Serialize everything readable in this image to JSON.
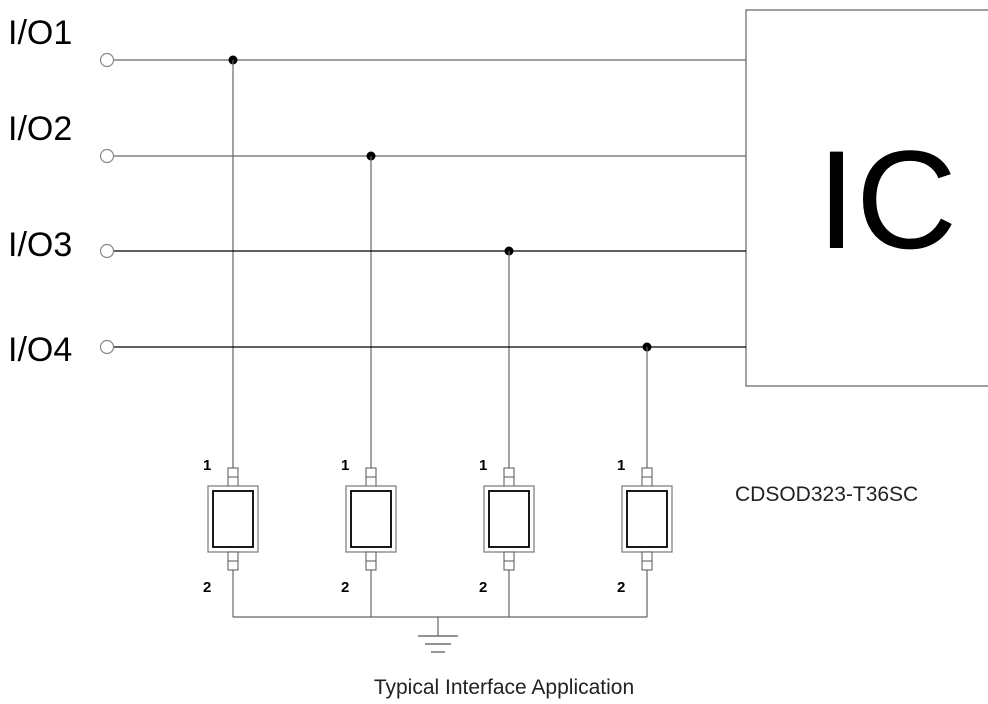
{
  "io_lines": [
    {
      "label": "I/O1"
    },
    {
      "label": "I/O2"
    },
    {
      "label": "I/O3"
    },
    {
      "label": "I/O4"
    }
  ],
  "ic": {
    "label": "IC"
  },
  "diodes": [
    {
      "pin_top": "1",
      "pin_bottom": "2"
    },
    {
      "pin_top": "1",
      "pin_bottom": "2"
    },
    {
      "pin_top": "1",
      "pin_bottom": "2"
    },
    {
      "pin_top": "1",
      "pin_bottom": "2"
    }
  ],
  "part_number": "CDSOD323-T36SC",
  "caption": "Typical Interface Application"
}
